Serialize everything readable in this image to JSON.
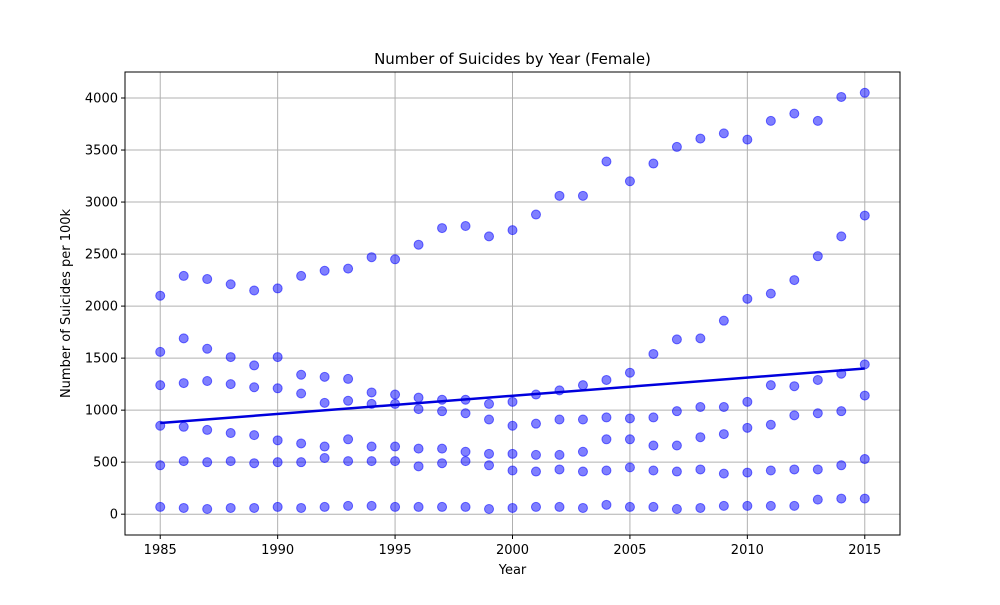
{
  "chart_data": {
    "type": "scatter",
    "title": "Number of Suicides by Year (Female)",
    "xlabel": "Year",
    "ylabel": "Number of Suicides per 100k",
    "xlim": [
      1983.5,
      2016.5
    ],
    "ylim": [
      -200,
      4250
    ],
    "xticks": [
      1985,
      1990,
      1995,
      2000,
      2005,
      2010,
      2015
    ],
    "yticks": [
      0,
      500,
      1000,
      1500,
      2000,
      2500,
      3000,
      3500,
      4000
    ],
    "grid": true,
    "point_color": "#0000ff",
    "point_opacity": 0.5,
    "line_color": "#0000dd",
    "x": [
      1985,
      1986,
      1987,
      1988,
      1989,
      1990,
      1991,
      1992,
      1993,
      1994,
      1995,
      1996,
      1997,
      1998,
      1999,
      2000,
      2001,
      2002,
      2003,
      2004,
      2005,
      2006,
      2007,
      2008,
      2009,
      2010,
      2011,
      2012,
      2013,
      2014,
      2015
    ],
    "series": [
      {
        "values": [
          2100,
          2290,
          2260,
          2210,
          2150,
          2170,
          2290,
          2340,
          2360,
          2470,
          2450,
          2590,
          2750,
          2770,
          2670,
          2730,
          2880,
          3060,
          3060,
          3390,
          3200,
          3370,
          3530,
          3610,
          3660,
          3600,
          3780,
          3850,
          3780,
          4010,
          4050
        ]
      },
      {
        "values": [
          1560,
          1690,
          1590,
          1510,
          1430,
          1510,
          1340,
          1320,
          1300,
          1170,
          1150,
          1120,
          1100,
          1100,
          1060,
          1080,
          1150,
          1190,
          1240,
          1290,
          1360,
          1540,
          1680,
          1690,
          1860,
          2070,
          2120,
          2250,
          2480,
          2670,
          2870
        ]
      },
      {
        "values": [
          1240,
          1260,
          1280,
          1250,
          1220,
          1210,
          1160,
          1070,
          1090,
          1060,
          1060,
          1010,
          990,
          970,
          910,
          850,
          870,
          910,
          910,
          930,
          920,
          930,
          990,
          1030,
          1030,
          1080,
          1240,
          1230,
          1290,
          1350,
          1440
        ]
      },
      {
        "values": [
          850,
          840,
          810,
          780,
          760,
          710,
          680,
          650,
          720,
          650,
          650,
          630,
          630,
          600,
          580,
          580,
          570,
          570,
          600,
          720,
          720,
          660,
          660,
          740,
          770,
          830,
          860,
          950,
          970,
          990,
          1140
        ]
      },
      {
        "values": [
          470,
          510,
          500,
          510,
          490,
          500,
          500,
          540,
          510,
          510,
          510,
          460,
          490,
          510,
          470,
          420,
          410,
          430,
          410,
          420,
          450,
          420,
          410,
          430,
          390,
          400,
          420,
          430,
          430,
          470,
          530
        ]
      },
      {
        "values": [
          70,
          60,
          50,
          60,
          60,
          70,
          60,
          70,
          80,
          80,
          70,
          70,
          70,
          70,
          50,
          60,
          70,
          70,
          60,
          90,
          70,
          70,
          50,
          60,
          80,
          80,
          80,
          80,
          140,
          150,
          150
        ]
      }
    ],
    "trend_line": {
      "x": [
        1985,
        2015
      ],
      "y": [
        876,
        1400
      ]
    }
  }
}
